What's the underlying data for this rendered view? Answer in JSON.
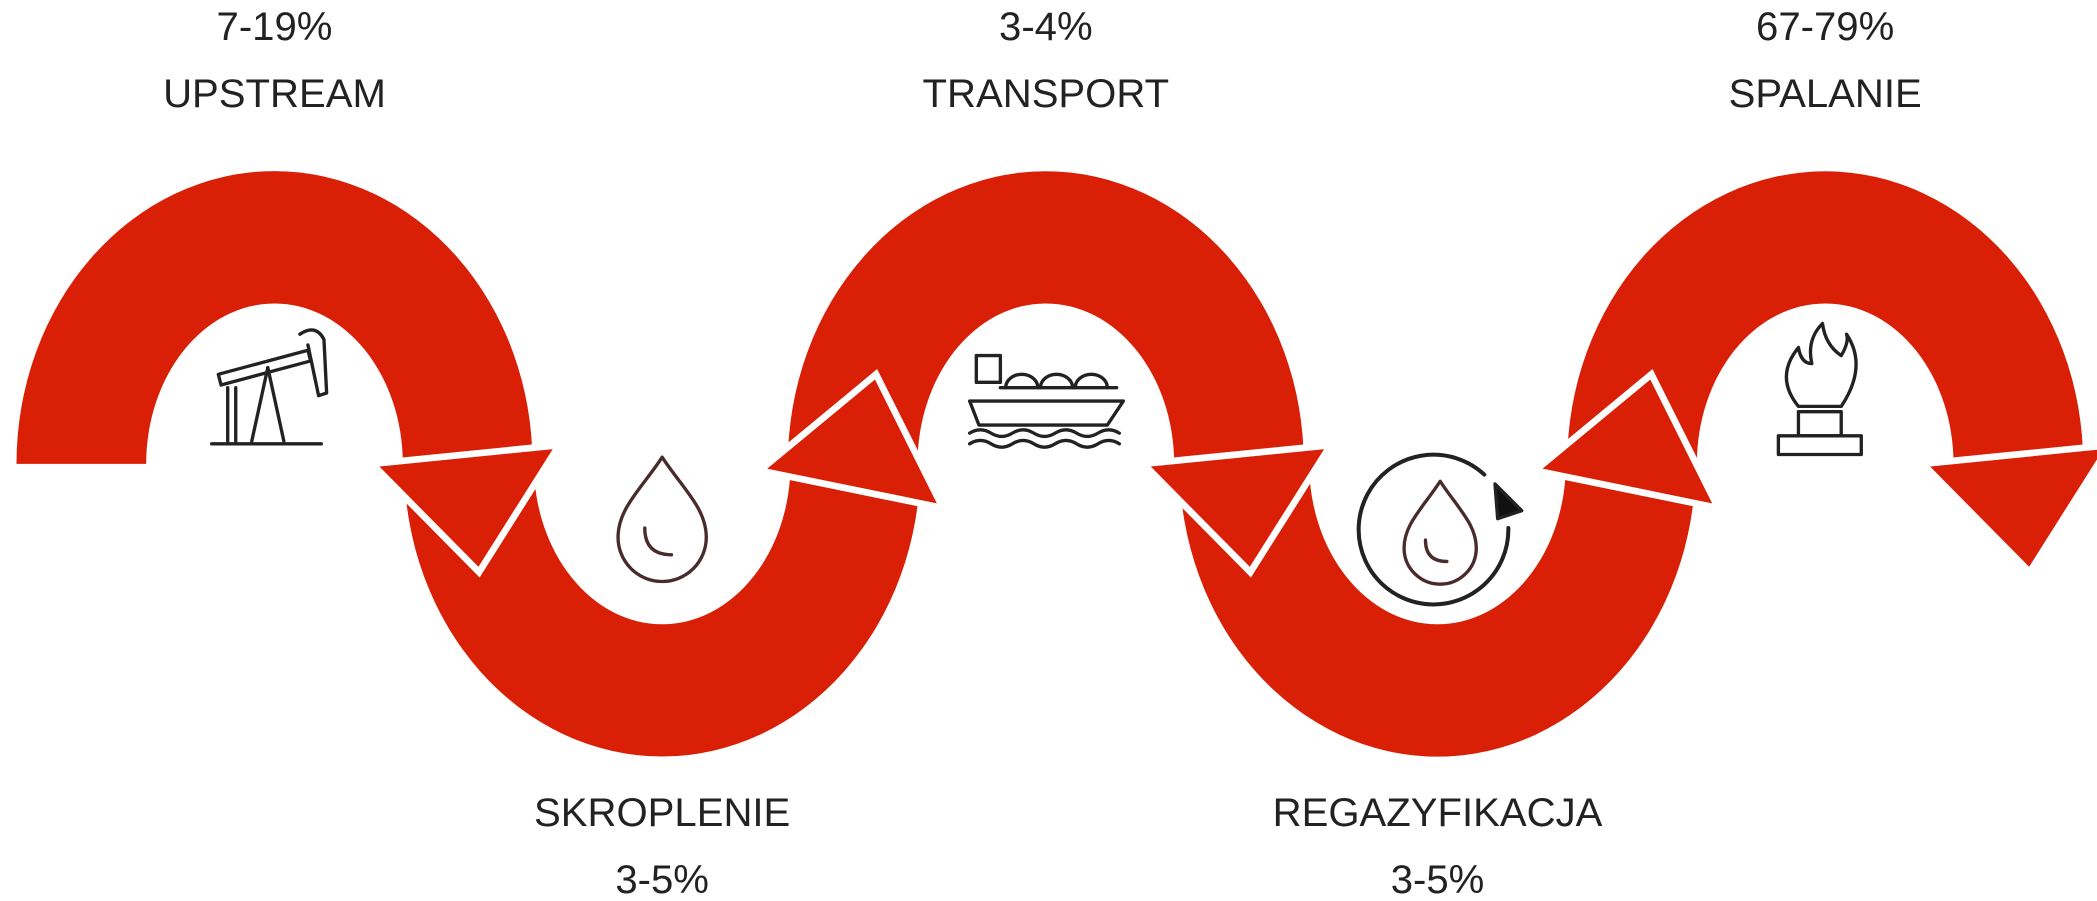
{
  "stages": [
    {
      "label": "UPSTREAM",
      "share": "7-19%"
    },
    {
      "label": "SKROPLENIE",
      "share": "3-5%"
    },
    {
      "label": "TRANSPORT",
      "share": "3-4%"
    },
    {
      "label": "REGAZYFIKACJA",
      "share": "3-5%"
    },
    {
      "label": "SPALANIE",
      "share": "67-79%"
    }
  ]
}
